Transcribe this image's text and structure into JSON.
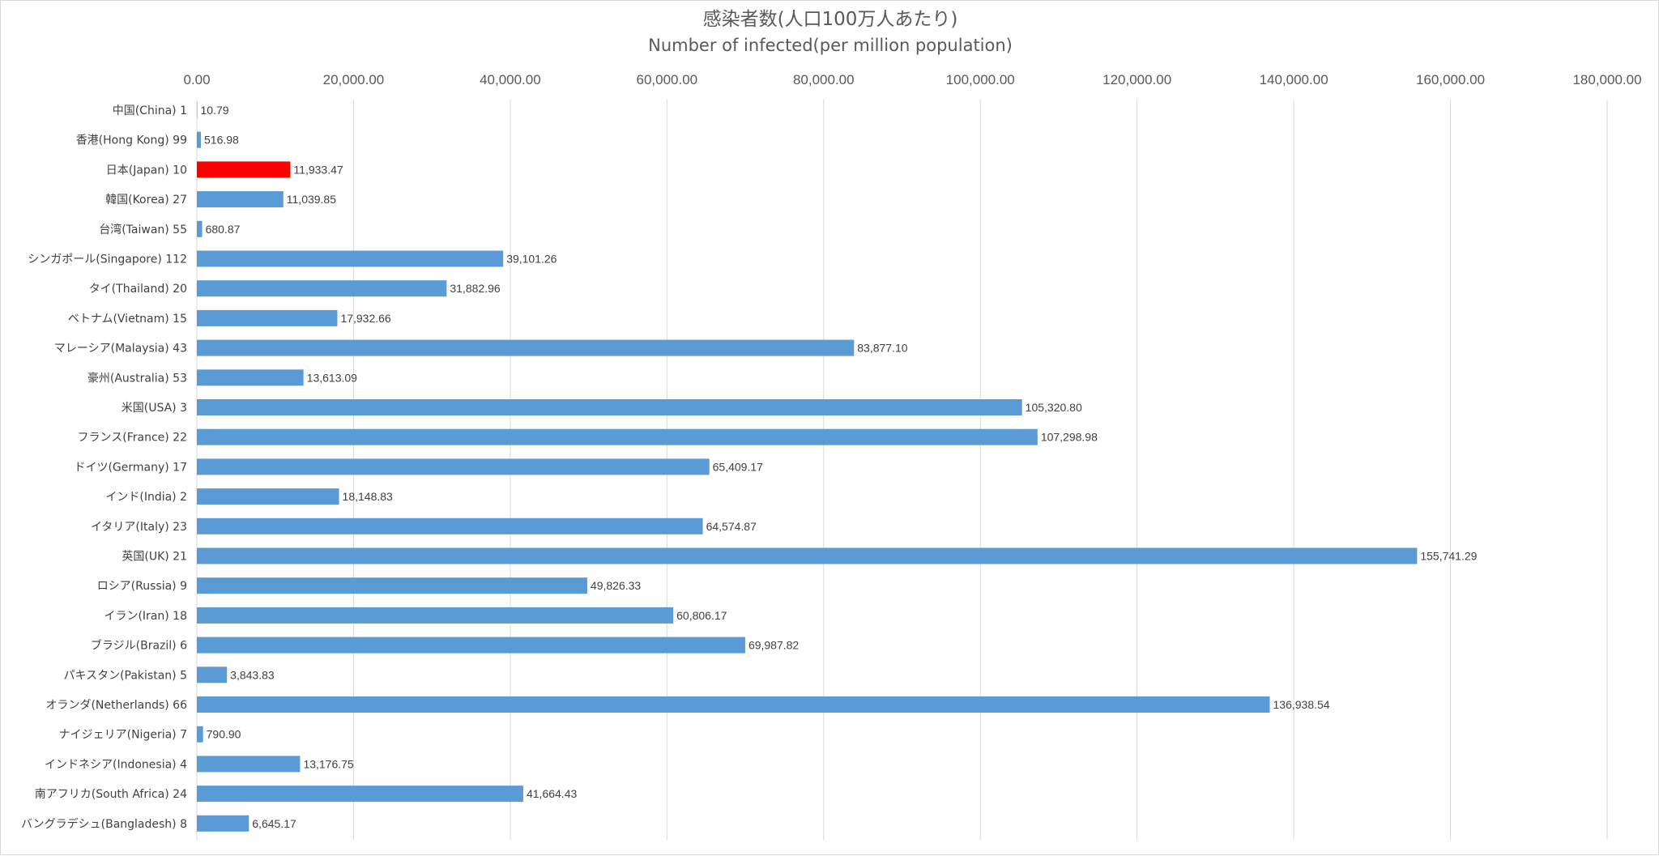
{
  "chart_data": {
    "type": "bar",
    "orientation": "horizontal",
    "title": "感染者数(人口100万人あたり)",
    "subtitle": "Number of infected(per million population)",
    "xlim": [
      0,
      180000
    ],
    "tick_values": [
      0,
      20000,
      40000,
      60000,
      80000,
      100000,
      120000,
      140000,
      160000,
      180000
    ],
    "tick_labels": [
      "0.00",
      "20,000.00",
      "40,000.00",
      "60,000.00",
      "80,000.00",
      "100,000.00",
      "120,000.00",
      "140,000.00",
      "160,000.00",
      "180,000.00"
    ],
    "x_axis_position": "top",
    "grid": true,
    "legend": "none",
    "categories": [
      "中国(China) 1",
      "香港(Hong Kong) 99",
      "日本(Japan) 10",
      "韓国(Korea) 27",
      "台湾(Taiwan) 55",
      "シンガポール(Singapore) 112",
      "タイ(Thailand) 20",
      "ベトナム(Vietnam) 15",
      "マレーシア(Malaysia) 43",
      "豪州(Australia) 53",
      "米国(USA) 3",
      "フランス(France) 22",
      "ドイツ(Germany) 17",
      "インド(India) 2",
      "イタリア(Italy) 23",
      "英国(UK) 21",
      "ロシア(Russia) 9",
      "イラン(Iran) 18",
      "ブラジル(Brazil) 6",
      "パキスタン(Pakistan) 5",
      "オランダ(Netherlands) 66",
      "ナイジェリア(Nigeria) 7",
      "インドネシア(Indonesia) 4",
      "南アフリカ(South Africa) 24",
      "バングラデシュ(Bangladesh) 8"
    ],
    "values": [
      10.79,
      516.98,
      11933.47,
      11039.85,
      680.87,
      39101.26,
      31882.96,
      17932.66,
      83877.1,
      13613.09,
      105320.8,
      107298.98,
      65409.17,
      18148.83,
      64574.87,
      155741.29,
      49826.33,
      60806.17,
      69987.82,
      3843.83,
      136938.54,
      790.9,
      13176.75,
      41664.43,
      6645.17
    ],
    "data_labels": [
      "10.79",
      "516.98",
      "11,933.47",
      "11,039.85",
      "680.87",
      "39,101.26",
      "31,882.96",
      "17,932.66",
      "83,877.10",
      "13,613.09",
      "105,320.80",
      "107,298.98",
      "65,409.17",
      "18,148.83",
      "64,574.87",
      "155,741.29",
      "49,826.33",
      "60,806.17",
      "69,987.82",
      "3,843.83",
      "136,938.54",
      "790.90",
      "13,176.75",
      "41,664.43",
      "6,645.17"
    ],
    "bar_color": "#5b9bd5",
    "highlight_color": "#ff0000",
    "highlight_index": 2
  }
}
